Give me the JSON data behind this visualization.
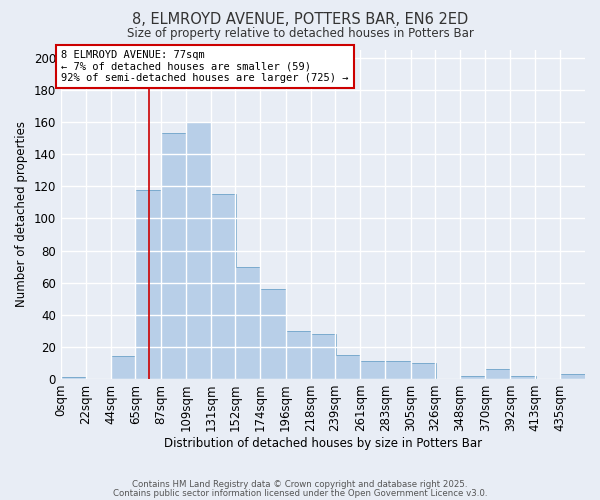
{
  "title_line1": "8, ELMROYD AVENUE, POTTERS BAR, EN6 2ED",
  "title_line2": "Size of property relative to detached houses in Potters Bar",
  "xlabel": "Distribution of detached houses by size in Potters Bar",
  "ylabel": "Number of detached properties",
  "bin_labels": [
    "0sqm",
    "22sqm",
    "44sqm",
    "65sqm",
    "87sqm",
    "109sqm",
    "131sqm",
    "152sqm",
    "174sqm",
    "196sqm",
    "218sqm",
    "239sqm",
    "261sqm",
    "283sqm",
    "305sqm",
    "326sqm",
    "348sqm",
    "370sqm",
    "392sqm",
    "413sqm",
    "435sqm"
  ],
  "bar_heights": [
    1,
    0,
    14,
    118,
    153,
    160,
    115,
    70,
    56,
    30,
    28,
    15,
    11,
    11,
    10,
    0,
    2,
    6,
    2,
    0,
    3
  ],
  "bar_color": "#b8cfe8",
  "bar_edge_color": "#7aaace",
  "background_color": "#e8edf5",
  "plot_bg_color": "#e8edf5",
  "grid_color": "#ffffff",
  "red_line_x": 77,
  "bin_starts": [
    0,
    22,
    44,
    65,
    87,
    109,
    131,
    152,
    174,
    196,
    218,
    239,
    261,
    283,
    305,
    326,
    348,
    370,
    392,
    413,
    435
  ],
  "bin_width": 22,
  "annotation_line1": "8 ELMROYD AVENUE: 77sqm",
  "annotation_line2": "← 7% of detached houses are smaller (59)",
  "annotation_line3": "92% of semi-detached houses are larger (725) →",
  "annotation_box_color": "#ffffff",
  "annotation_box_edge_color": "#cc0000",
  "ylim": [
    0,
    205
  ],
  "yticks": [
    0,
    20,
    40,
    60,
    80,
    100,
    120,
    140,
    160,
    180,
    200
  ],
  "footer_line1": "Contains HM Land Registry data © Crown copyright and database right 2025.",
  "footer_line2": "Contains public sector information licensed under the Open Government Licence v3.0."
}
